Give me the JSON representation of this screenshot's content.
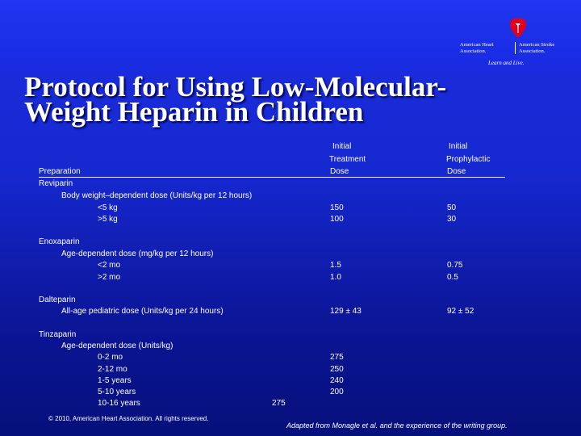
{
  "slide": {
    "title_line1": "Protocol for Using Low-Molecular-",
    "title_line2": "Weight Heparin in Children",
    "logo": {
      "org1_line1": "American Heart",
      "org1_line2": "Association.",
      "org2_line1": "American Stroke",
      "org2_line2": "Association.",
      "tagline": "Learn and Live.",
      "colors": {
        "heart": "#e2001a",
        "torch": "#ffffff"
      }
    }
  },
  "table": {
    "headers": {
      "preparation": "Preparation",
      "treatment_line1": "Initial",
      "treatment_line2": "Treatment",
      "treatment_line3": "Dose",
      "prophylactic_line1": "Initial",
      "prophylactic_line2": "Prophylactic",
      "prophylactic_line3": "Dose"
    },
    "reviparin": {
      "name": "Reviparin",
      "desc": "Body weight–dependent dose (Units/kg per 12 hours)",
      "rows": [
        {
          "label": "<5 kg",
          "treatment": "150",
          "prophylactic": "50"
        },
        {
          "label": ">5 kg",
          "treatment": "100",
          "prophylactic": "30"
        }
      ]
    },
    "enoxaparin": {
      "name": "Enoxaparin",
      "desc": "Age-dependent dose (mg/kg per 12 hours)",
      "rows": [
        {
          "label": "<2 mo",
          "treatment": "1.5",
          "prophylactic": "0.75"
        },
        {
          "label": ">2 mo",
          "treatment": "1.0",
          "prophylactic": "0.5"
        }
      ]
    },
    "dalteparin": {
      "name": "Dalteparin",
      "desc": "All-age pediatric dose (Units/kg per 24 hours)",
      "treatment": "129 ± 43",
      "prophylactic": "92 ± 52"
    },
    "tinzaparin": {
      "name": "Tinzaparin",
      "desc": "Age-dependent dose (Units/kg)",
      "rows": [
        {
          "label": "0-2 mo",
          "treatment": "275"
        },
        {
          "label": "2-12 mo",
          "treatment": "250"
        },
        {
          "label": "1-5 years",
          "treatment": "240"
        },
        {
          "label": "5-10 years",
          "treatment": "200"
        },
        {
          "label": "10-16 years",
          "treatment": "275"
        }
      ]
    }
  },
  "footer": {
    "copyright": "© 2010, American Heart Association. All rights reserved.",
    "source": "Adapted from Monagle et al. and the experience of the writing group."
  }
}
